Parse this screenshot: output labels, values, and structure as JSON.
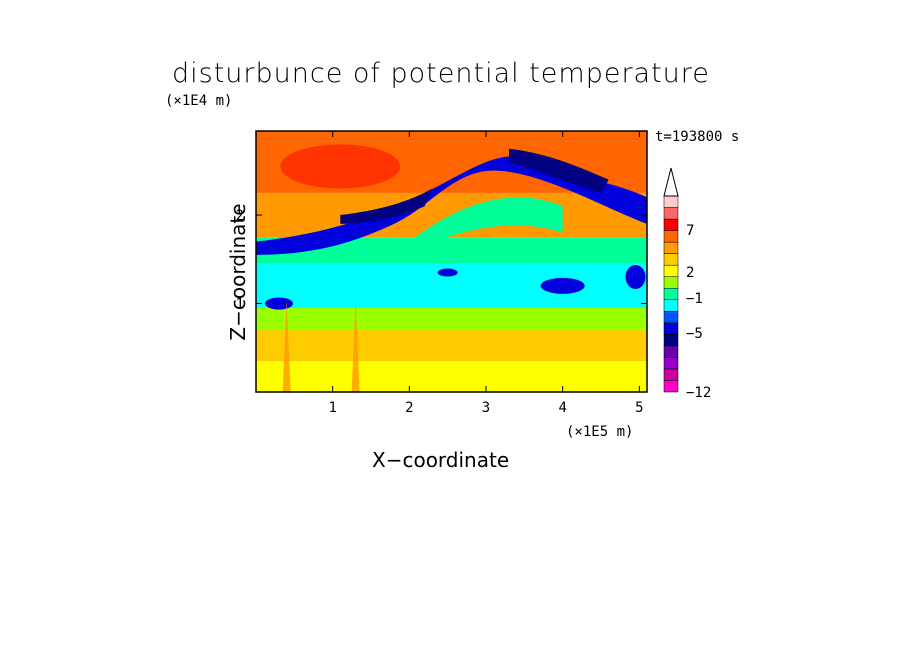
{
  "chart_data": {
    "type": "heatmap",
    "title": "disturbunce of potential temperature",
    "xlabel": "X−coordinate",
    "ylabel": "Z−coordinate",
    "x_unit": "(×1E5 m)",
    "y_unit": "(×1E4 m)",
    "time_label": "t=193800 s",
    "xlim": [
      0,
      5.1
    ],
    "ylim": [
      0,
      2.95
    ],
    "x_ticks": [
      "1",
      "2",
      "3",
      "4",
      "5"
    ],
    "y_ticks": [
      "1",
      "2"
    ],
    "colorbar": {
      "labels": [
        "7",
        "2",
        "−1",
        "−5",
        "−12"
      ],
      "colors": [
        "#ff00cc",
        "#cc00a0",
        "#9900cc",
        "#6600aa",
        "#000080",
        "#0000dd",
        "#0055ff",
        "#00ffff",
        "#00ff99",
        "#99ff00",
        "#ffff00",
        "#ffcc00",
        "#ff9900",
        "#ff6600",
        "#ff0000",
        "#ff6666",
        "#ffcccc"
      ],
      "extend": "max"
    },
    "bands": [
      {
        "z": [
          0.0,
          0.35
        ],
        "value": 2,
        "description_color": "#ffff00"
      },
      {
        "z": [
          0.35,
          0.7
        ],
        "value": 3,
        "description_color": "#ffcc00"
      },
      {
        "z": [
          0.7,
          0.95
        ],
        "value": 1,
        "description_color": "#99ff00"
      },
      {
        "z": [
          0.95,
          1.45
        ],
        "value": -1,
        "description_color": "#00ffff"
      },
      {
        "z": [
          1.45,
          1.75
        ],
        "value": -2,
        "description_color": "#00ff99"
      },
      {
        "z": [
          1.75,
          2.25
        ],
        "value": 4,
        "description_color": "#ff9900"
      },
      {
        "z": [
          2.25,
          2.95
        ],
        "value": 6,
        "description_color": "#ff6600"
      }
    ]
  }
}
